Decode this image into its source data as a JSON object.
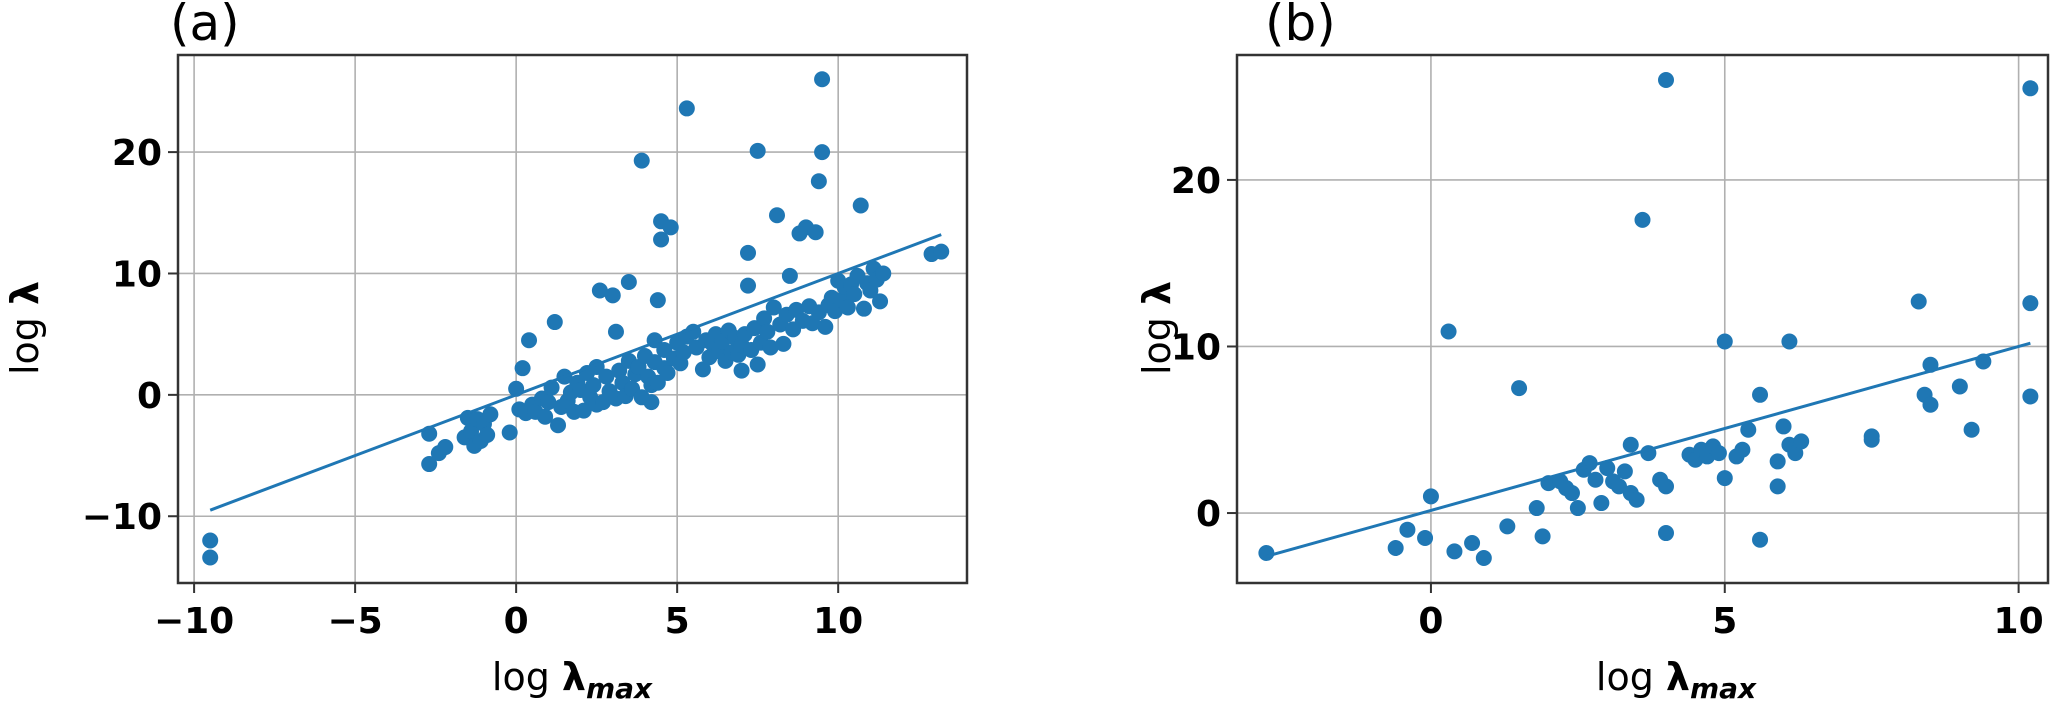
{
  "chart_data": [
    {
      "type": "scatter",
      "panel_label": "(a)",
      "xlabel": {
        "prefix": "log ",
        "symbol": "λ",
        "sub": "max"
      },
      "ylabel": {
        "prefix": "log ",
        "symbol": "λ"
      },
      "xlim": [
        -10.5,
        14
      ],
      "ylim": [
        -15.5,
        28
      ],
      "xticks": [
        -10,
        -5,
        0,
        5,
        10
      ],
      "xtick_labels": [
        "−10",
        "−5",
        "0",
        "5",
        "10"
      ],
      "yticks": [
        -10,
        0,
        10,
        20
      ],
      "ytick_labels": [
        "−10",
        "0",
        "10",
        "20"
      ],
      "grid": true,
      "color": "#1f77b4",
      "fit_line": {
        "x": [
          -9.5,
          13.2
        ],
        "y": [
          -9.5,
          13.2
        ]
      },
      "points": [
        [
          -9.5,
          -12
        ],
        [
          -9.5,
          -13.4
        ],
        [
          -2.7,
          -3.2
        ],
        [
          -2.7,
          -5.7
        ],
        [
          -2.4,
          -4.8
        ],
        [
          -2.2,
          -4.3
        ],
        [
          -1.6,
          -3.5
        ],
        [
          -1.5,
          -1.9
        ],
        [
          -1.4,
          -3
        ],
        [
          -1.3,
          -4.2
        ],
        [
          -1.2,
          -2
        ],
        [
          -1.1,
          -3.8
        ],
        [
          -1.0,
          -2.4
        ],
        [
          -0.9,
          -3.3
        ],
        [
          -0.8,
          -1.6
        ],
        [
          -0.2,
          -3.1
        ],
        [
          0,
          0.5
        ],
        [
          0.1,
          -1.2
        ],
        [
          0.2,
          2.2
        ],
        [
          0.3,
          -1.5
        ],
        [
          0.4,
          4.5
        ],
        [
          0.5,
          -0.8
        ],
        [
          0.6,
          -1.4
        ],
        [
          0.8,
          -0.3
        ],
        [
          0.9,
          -1.8
        ],
        [
          1.0,
          -0.6
        ],
        [
          1.1,
          0.6
        ],
        [
          1.2,
          6
        ],
        [
          1.3,
          -2.5
        ],
        [
          1.4,
          -1
        ],
        [
          1.5,
          1.5
        ],
        [
          1.6,
          -0.5
        ],
        [
          1.7,
          0.2
        ],
        [
          1.8,
          -1.4
        ],
        [
          1.9,
          1
        ],
        [
          2.0,
          0.4
        ],
        [
          2.1,
          -1.3
        ],
        [
          2.2,
          1.8
        ],
        [
          2.3,
          -0.2
        ],
        [
          2.4,
          0.8
        ],
        [
          2.5,
          -0.8
        ],
        [
          2.5,
          2.3
        ],
        [
          2.6,
          8.6
        ],
        [
          2.7,
          -0.6
        ],
        [
          2.8,
          1.5
        ],
        [
          2.9,
          0.3
        ],
        [
          3.0,
          8.2
        ],
        [
          3.1,
          -0.3
        ],
        [
          3.1,
          5.2
        ],
        [
          3.2,
          2
        ],
        [
          3.3,
          1
        ],
        [
          3.4,
          -0.1
        ],
        [
          3.5,
          2.8
        ],
        [
          3.5,
          9.3
        ],
        [
          3.6,
          0.5
        ],
        [
          3.7,
          1.7
        ],
        [
          3.8,
          2.3
        ],
        [
          3.9,
          19.3
        ],
        [
          3.9,
          -0.2
        ],
        [
          4.0,
          3.2
        ],
        [
          4.1,
          1.5
        ],
        [
          4.2,
          0.8
        ],
        [
          4.2,
          -0.6
        ],
        [
          4.3,
          2.7
        ],
        [
          4.3,
          4.5
        ],
        [
          4.4,
          7.8
        ],
        [
          4.4,
          1
        ],
        [
          4.5,
          12.8
        ],
        [
          4.5,
          14.3
        ],
        [
          4.6,
          2.2
        ],
        [
          4.6,
          3.7
        ],
        [
          4.7,
          1.8
        ],
        [
          4.8,
          13.8
        ],
        [
          4.9,
          3
        ],
        [
          5.0,
          4.3
        ],
        [
          5.1,
          2.6
        ],
        [
          5.2,
          3.5
        ],
        [
          5.3,
          23.6
        ],
        [
          5.3,
          4.8
        ],
        [
          5.5,
          5.2
        ],
        [
          5.6,
          3.9
        ],
        [
          5.8,
          2.1
        ],
        [
          5.9,
          4.5
        ],
        [
          6.0,
          3.1
        ],
        [
          6.1,
          4.2
        ],
        [
          6.2,
          5
        ],
        [
          6.3,
          3.6
        ],
        [
          6.4,
          4.4
        ],
        [
          6.5,
          2.8
        ],
        [
          6.6,
          5.3
        ],
        [
          6.7,
          3.5
        ],
        [
          6.8,
          4.7
        ],
        [
          6.9,
          3.3
        ],
        [
          7.0,
          4.1
        ],
        [
          7.0,
          2
        ],
        [
          7.1,
          5
        ],
        [
          7.2,
          11.7
        ],
        [
          7.2,
          9
        ],
        [
          7.3,
          3.7
        ],
        [
          7.4,
          5.5
        ],
        [
          7.5,
          2.5
        ],
        [
          7.5,
          20.1
        ],
        [
          7.6,
          4.3
        ],
        [
          7.7,
          6.3
        ],
        [
          7.8,
          5.2
        ],
        [
          7.9,
          3.9
        ],
        [
          8.0,
          7.2
        ],
        [
          8.1,
          14.8
        ],
        [
          8.2,
          5.8
        ],
        [
          8.3,
          4.2
        ],
        [
          8.4,
          6.6
        ],
        [
          8.5,
          9.8
        ],
        [
          8.6,
          5.4
        ],
        [
          8.7,
          7
        ],
        [
          8.8,
          13.3
        ],
        [
          8.9,
          6.1
        ],
        [
          9.0,
          13.8
        ],
        [
          9.1,
          7.3
        ],
        [
          9.2,
          5.9
        ],
        [
          9.3,
          13.4
        ],
        [
          9.4,
          17.6
        ],
        [
          9.4,
          6.8
        ],
        [
          9.5,
          20
        ],
        [
          9.5,
          26
        ],
        [
          9.6,
          5.6
        ],
        [
          9.7,
          7.4
        ],
        [
          9.8,
          8
        ],
        [
          9.9,
          6.9
        ],
        [
          10.0,
          9.4
        ],
        [
          10.1,
          7.8
        ],
        [
          10.2,
          8.9
        ],
        [
          10.3,
          7.2
        ],
        [
          10.4,
          9.1
        ],
        [
          10.5,
          8.3
        ],
        [
          10.6,
          9.8
        ],
        [
          10.7,
          15.6
        ],
        [
          10.8,
          7.1
        ],
        [
          10.9,
          9.2
        ],
        [
          11.0,
          8.6
        ],
        [
          11.1,
          10.4
        ],
        [
          11.2,
          9.5
        ],
        [
          11.3,
          7.7
        ],
        [
          11.4,
          10
        ],
        [
          12.9,
          11.6
        ],
        [
          13.2,
          11.8
        ]
      ]
    },
    {
      "type": "scatter",
      "panel_label": "(b)",
      "xlabel": {
        "prefix": "log ",
        "symbol": "λ",
        "sub": "max"
      },
      "ylabel": {
        "prefix": "log ",
        "symbol": "λ"
      },
      "xlim": [
        -3.3,
        10.5
      ],
      "ylim": [
        -4.2,
        27.5
      ],
      "xticks": [
        0,
        5,
        10
      ],
      "xtick_labels": [
        "0",
        "5",
        "10"
      ],
      "yticks": [
        0,
        10,
        20
      ],
      "ytick_labels": [
        "0",
        "10",
        "20"
      ],
      "grid": true,
      "color": "#1f77b4",
      "fit_line": {
        "x": [
          -2.8,
          10.2
        ],
        "y": [
          -2.6,
          10.2
        ]
      },
      "points": [
        [
          -2.8,
          -2.4
        ],
        [
          -0.6,
          -2.1
        ],
        [
          -0.4,
          -1
        ],
        [
          -0.1,
          -1.5
        ],
        [
          0,
          1
        ],
        [
          0.3,
          10.9
        ],
        [
          0.4,
          -2.3
        ],
        [
          0.7,
          -1.8
        ],
        [
          0.9,
          -2.7
        ],
        [
          1.3,
          -0.8
        ],
        [
          1.5,
          7.5
        ],
        [
          1.8,
          0.3
        ],
        [
          1.9,
          -1.4
        ],
        [
          2.0,
          1.8
        ],
        [
          2.2,
          1.9
        ],
        [
          2.3,
          1.5
        ],
        [
          2.4,
          1.2
        ],
        [
          2.5,
          0.3
        ],
        [
          2.6,
          2.6
        ],
        [
          2.7,
          3
        ],
        [
          2.8,
          2
        ],
        [
          2.9,
          0.6
        ],
        [
          3.0,
          2.7
        ],
        [
          3.1,
          1.9
        ],
        [
          3.2,
          1.6
        ],
        [
          3.3,
          2.5
        ],
        [
          3.4,
          4.1
        ],
        [
          3.4,
          1.2
        ],
        [
          3.5,
          0.8
        ],
        [
          3.6,
          17.6
        ],
        [
          3.7,
          3.6
        ],
        [
          3.9,
          2
        ],
        [
          4.0,
          26
        ],
        [
          4.0,
          1.6
        ],
        [
          4.0,
          -1.2
        ],
        [
          4.4,
          3.5
        ],
        [
          4.5,
          3.2
        ],
        [
          4.6,
          3.8
        ],
        [
          4.7,
          3.4
        ],
        [
          4.8,
          4
        ],
        [
          4.9,
          3.6
        ],
        [
          5.0,
          10.3
        ],
        [
          5.0,
          2.1
        ],
        [
          5.2,
          3.4
        ],
        [
          5.3,
          3.8
        ],
        [
          5.4,
          5
        ],
        [
          5.6,
          7.1
        ],
        [
          5.6,
          -1.6
        ],
        [
          5.9,
          1.6
        ],
        [
          5.9,
          3.1
        ],
        [
          6.0,
          5.2
        ],
        [
          6.1,
          10.3
        ],
        [
          6.1,
          4.1
        ],
        [
          6.2,
          3.6
        ],
        [
          6.3,
          4.3
        ],
        [
          7.5,
          4.6
        ],
        [
          7.5,
          4.4
        ],
        [
          8.3,
          12.7
        ],
        [
          8.4,
          7.1
        ],
        [
          8.5,
          8.9
        ],
        [
          8.5,
          6.5
        ],
        [
          9.0,
          7.6
        ],
        [
          9.2,
          5
        ],
        [
          9.4,
          9.1
        ],
        [
          10.2,
          25.5
        ],
        [
          10.2,
          12.6
        ],
        [
          10.2,
          7
        ]
      ]
    }
  ]
}
